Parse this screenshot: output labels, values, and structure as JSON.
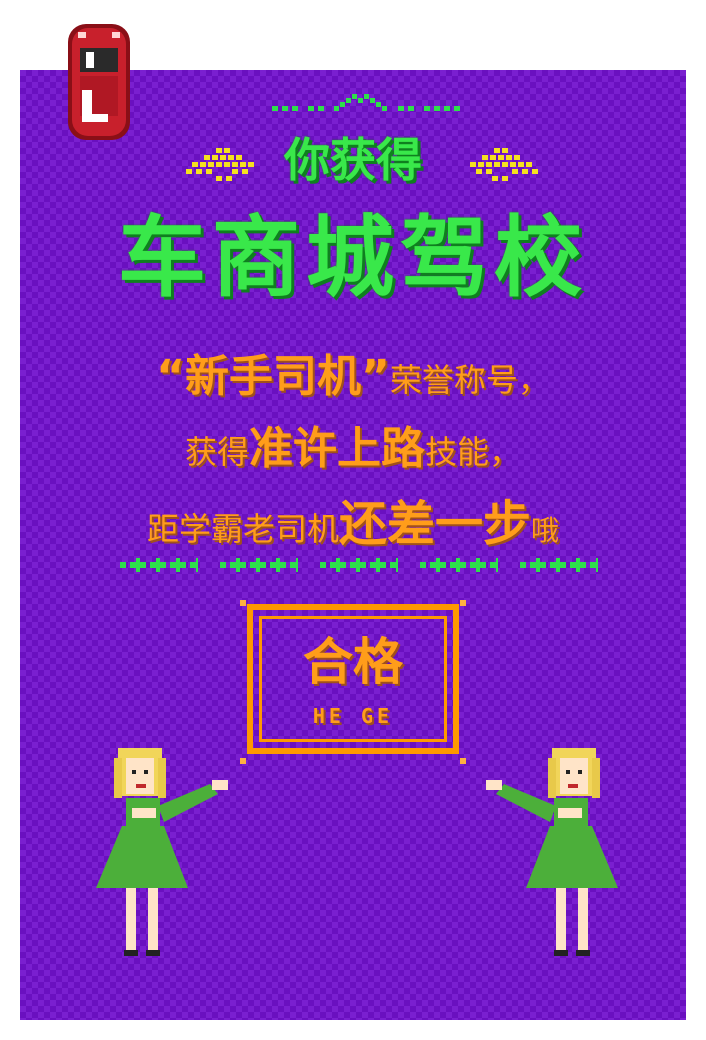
{
  "header": {
    "prefix": "你获得"
  },
  "title": "车商城驾校",
  "lines": {
    "l1_quote": "“新手司机”",
    "l1_rest": "荣誉称号，",
    "l2_a": "获得",
    "l2_b": "准许上路",
    "l2_c": "技能，",
    "l3_a": "距学霸老司机",
    "l3_b": "还差一步",
    "l3_c": "哦"
  },
  "badge": {
    "cn": "合格",
    "pinyin": "HE GE"
  },
  "colors": {
    "background": "#7a1fd0",
    "green": "#39e84a",
    "orange": "#ff9d1a",
    "car": "#c8202c",
    "dress": "#4caf3a",
    "hair": "#f1d55a"
  }
}
